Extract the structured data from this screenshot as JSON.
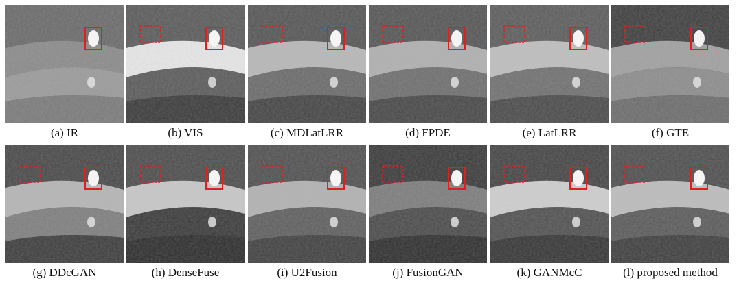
{
  "panels": [
    {
      "caption": "(a) IR"
    },
    {
      "caption": "(b) VIS"
    },
    {
      "caption": "(c) MDLatLRR"
    },
    {
      "caption": "(d) FPDE"
    },
    {
      "caption": "(e) LatLRR"
    },
    {
      "caption": "(f) GTE"
    },
    {
      "caption": "(g) DDcGAN"
    },
    {
      "caption": "(h) DenseFuse"
    },
    {
      "caption": "(i) U2Fusion"
    },
    {
      "caption": "(j) FusionGAN"
    },
    {
      "caption": "(k) GANMcC"
    },
    {
      "caption": "(l) proposed method"
    }
  ]
}
